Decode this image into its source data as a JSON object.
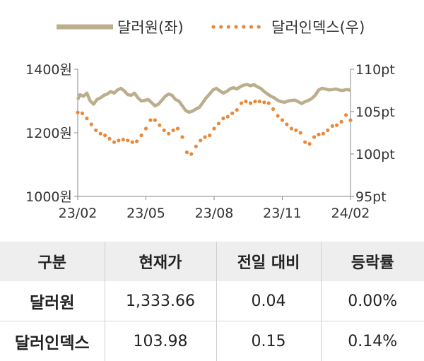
{
  "chart_data": {
    "type": "line",
    "legend": {
      "placement": "top",
      "items": [
        {
          "name": "달러원(좌)",
          "color": "#bcae8c",
          "style": "solid"
        },
        {
          "name": "달러인덱스(우)",
          "color": "#e8883a",
          "style": "dotted"
        }
      ]
    },
    "x_tick_labels": [
      "23/02",
      "23/05",
      "23/08",
      "23/11",
      "24/02"
    ],
    "y_left": {
      "range": [
        1000,
        1400
      ],
      "tick_labels": [
        "1400원",
        "1200원",
        "1000원"
      ],
      "ticks": [
        1400,
        1200,
        1000
      ]
    },
    "y_right": {
      "range": [
        95,
        110
      ],
      "tick_labels": [
        "110pt",
        "105pt",
        "100pt",
        "95pt"
      ],
      "ticks": [
        110,
        105,
        100,
        95
      ]
    },
    "x_range": [
      0,
      12
    ],
    "grid": false,
    "series": [
      {
        "name": "달러원(좌)",
        "axis": "left",
        "color": "#bcae8c",
        "x": [
          0,
          0.1,
          0.25,
          0.4,
          0.55,
          0.7,
          0.85,
          1.0,
          1.15,
          1.3,
          1.45,
          1.6,
          1.75,
          1.9,
          2.05,
          2.2,
          2.35,
          2.5,
          2.65,
          2.8,
          2.95,
          3.1,
          3.25,
          3.4,
          3.55,
          3.7,
          3.85,
          4.0,
          4.15,
          4.3,
          4.45,
          4.6,
          4.75,
          4.9,
          5.05,
          5.2,
          5.35,
          5.5,
          5.65,
          5.8,
          5.95,
          6.1,
          6.25,
          6.4,
          6.55,
          6.7,
          6.85,
          7.0,
          7.15,
          7.3,
          7.45,
          7.6,
          7.75,
          7.9,
          8.05,
          8.2,
          8.35,
          8.5,
          8.65,
          8.8,
          8.95,
          9.1,
          9.25,
          9.4,
          9.55,
          9.7,
          9.85,
          10.0,
          10.15,
          10.3,
          10.45,
          10.6,
          10.75,
          10.9,
          11.05,
          11.2,
          11.35,
          11.5,
          11.65,
          11.8,
          11.95,
          12.0
        ],
        "values": [
          1305,
          1320,
          1315,
          1325,
          1300,
          1290,
          1305,
          1310,
          1318,
          1322,
          1330,
          1325,
          1335,
          1340,
          1332,
          1320,
          1318,
          1325,
          1310,
          1300,
          1302,
          1305,
          1295,
          1285,
          1290,
          1302,
          1315,
          1322,
          1318,
          1305,
          1300,
          1285,
          1270,
          1265,
          1268,
          1275,
          1280,
          1295,
          1310,
          1322,
          1335,
          1340,
          1332,
          1325,
          1330,
          1338,
          1342,
          1338,
          1345,
          1350,
          1352,
          1348,
          1352,
          1345,
          1340,
          1330,
          1322,
          1315,
          1310,
          1302,
          1298,
          1296,
          1300,
          1302,
          1303,
          1298,
          1292,
          1298,
          1302,
          1308,
          1318,
          1335,
          1340,
          1338,
          1335,
          1336,
          1338,
          1335,
          1333,
          1336,
          1335,
          1333.66
        ]
      },
      {
        "name": "달러인덱스(우)",
        "axis": "right",
        "color": "#e8883a",
        "x": [
          0,
          0.2,
          0.4,
          0.6,
          0.8,
          1.0,
          1.2,
          1.4,
          1.6,
          1.8,
          2.0,
          2.2,
          2.4,
          2.6,
          2.8,
          3.0,
          3.2,
          3.4,
          3.6,
          3.8,
          4.0,
          4.2,
          4.4,
          4.6,
          4.8,
          5.0,
          5.2,
          5.4,
          5.6,
          5.8,
          6.0,
          6.2,
          6.4,
          6.6,
          6.8,
          7.0,
          7.2,
          7.4,
          7.6,
          7.8,
          8.0,
          8.2,
          8.4,
          8.6,
          8.8,
          9.0,
          9.2,
          9.4,
          9.6,
          9.8,
          10.0,
          10.2,
          10.4,
          10.6,
          10.8,
          11.0,
          11.2,
          11.4,
          11.6,
          11.8,
          12.0
        ],
        "values": [
          104.9,
          104.8,
          104.2,
          103.5,
          102.8,
          102.4,
          102.2,
          101.8,
          101.4,
          101.6,
          101.7,
          101.6,
          101.4,
          101.5,
          102.2,
          103.0,
          104.0,
          104.0,
          103.4,
          102.8,
          102.4,
          102.8,
          103.0,
          102.0,
          100.2,
          100.0,
          100.9,
          101.6,
          102.0,
          102.2,
          103.0,
          103.6,
          104.2,
          104.4,
          104.8,
          105.2,
          106.0,
          106.2,
          106.0,
          106.2,
          106.2,
          106.1,
          106.0,
          105.3,
          104.5,
          104.0,
          103.5,
          103.0,
          102.8,
          102.5,
          101.4,
          101.2,
          102.0,
          102.3,
          102.4,
          102.8,
          103.3,
          103.4,
          103.8,
          104.6,
          103.98
        ]
      }
    ]
  },
  "table": {
    "headers": [
      "구분",
      "현재가",
      "전일 대비",
      "등락률"
    ],
    "rows": [
      [
        "달러원",
        "1,333.66",
        "0.04",
        "0.00%"
      ],
      [
        "달러인덱스",
        "103.98",
        "0.15",
        "0.14%"
      ]
    ]
  }
}
